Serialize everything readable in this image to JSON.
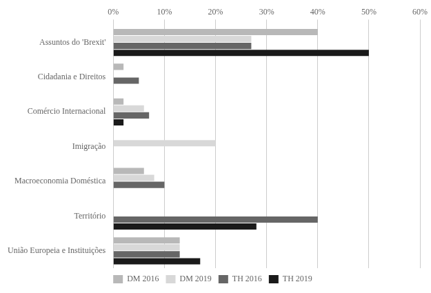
{
  "chart_data": {
    "type": "bar",
    "orientation": "horizontal",
    "categories": [
      "Assuntos do 'Brexit'",
      "Cidadania e Direitos",
      "Comércio Internacional",
      "Imigração",
      "Macroeconomia Doméstica",
      "Território",
      "União Europeia e Instituições"
    ],
    "series": [
      {
        "name": "DM 2016",
        "color": "#b8b8b8",
        "values": [
          40,
          2,
          2,
          0,
          6,
          0,
          13
        ]
      },
      {
        "name": "DM 2019",
        "color": "#d8d8d8",
        "values": [
          27,
          0,
          6,
          20,
          8,
          0,
          13
        ]
      },
      {
        "name": "TH 2016",
        "color": "#666666",
        "values": [
          27,
          5,
          7,
          0,
          10,
          40,
          13
        ]
      },
      {
        "name": "TH 2019",
        "color": "#1a1a1a",
        "values": [
          50,
          0,
          2,
          0,
          0,
          28,
          17
        ]
      }
    ],
    "xlim": [
      0,
      60
    ],
    "xticks": [
      {
        "value": 0,
        "label": "0%"
      },
      {
        "value": 10,
        "label": "10%"
      },
      {
        "value": 20,
        "label": "20%"
      },
      {
        "value": 30,
        "label": "30%"
      },
      {
        "value": 40,
        "label": "40%"
      },
      {
        "value": 50,
        "label": "50%"
      },
      {
        "value": 60,
        "label": "60%"
      }
    ],
    "grid": "x",
    "legend": "bottom"
  }
}
